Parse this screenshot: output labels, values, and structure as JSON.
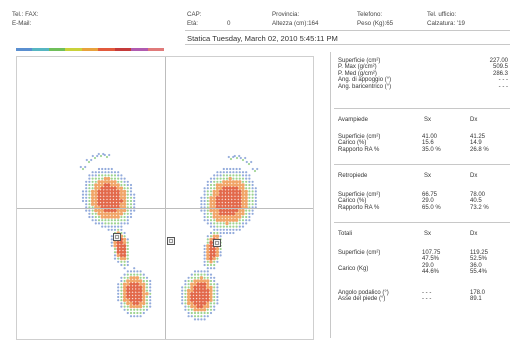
{
  "header": {
    "tel_fax": "Tel.: FAX:",
    "email": "E-Mail:",
    "cap": "CAP:",
    "eta_label": "Età:",
    "eta_value": "0",
    "provincia": "Provincia:",
    "altezza": "Altezza (cm):164",
    "telefono": "Telefono:",
    "peso": "Peso (Kg):65",
    "tel_ufficio": "Tel. ufficio:",
    "calzatura": "Calzatura: '19"
  },
  "title": "Statica Tuesday, March 02, 2010 5:45:11 PM",
  "colors": {
    "stripe": [
      "#5a8fd0",
      "#56b6c2",
      "#6fbf5a",
      "#c9d23a",
      "#e8a23c",
      "#e25a3c",
      "#c43a3a",
      "#b05ab0",
      "#e07a7a"
    ],
    "blue": "#6f8fcf",
    "green": "#7cc46a",
    "orange": "#f0a060",
    "red": "#e06040"
  },
  "summary": {
    "labels": [
      "Superficie (cm²)",
      "P. Max (g/cm²)",
      "P. Med (g/cm²)",
      "Ang. di appoggio (°)",
      "Ang. baricentrico (°)"
    ],
    "values": [
      "227.00",
      "509.5",
      "286.3",
      "- - -",
      "- - -"
    ]
  },
  "avampiede": {
    "title": "Avampiede",
    "sx": "Sx",
    "dx": "Dx",
    "labels": [
      "Superficie (cm²)",
      "Carico (%)",
      "Rapporto RA %"
    ],
    "sx_values": [
      "41.00",
      "15.6",
      "35.0 %"
    ],
    "dx_values": [
      "41.25",
      "14.9",
      "26.8 %"
    ]
  },
  "retropiede": {
    "title": "Retropiede",
    "sx": "Sx",
    "dx": "Dx",
    "labels": [
      "Superficie (cm²)",
      "Carico (%)",
      "Rapporto RA %"
    ],
    "sx_values": [
      "66.75",
      "29.0",
      "65.0 %"
    ],
    "dx_values": [
      "78.00",
      "40.5",
      "73.2 %"
    ]
  },
  "totali": {
    "title": "Totali",
    "sx": "Sx",
    "dx": "Dx",
    "superficie_label": "Superficie (cm²)",
    "superficie_sx": "107.75",
    "superficie_dx": "119.25",
    "pct_sx": "47.5%",
    "pct_dx": "52.5%",
    "carico_label": "Carico (Kg)",
    "carico_sx": "29.0",
    "carico_dx": "36.0",
    "carico_pct_sx": "44.6%",
    "carico_pct_dx": "55.4%",
    "angolo_label": "Angolo podalico (°)",
    "angolo_sx": "- - -",
    "angolo_dx": "178.0",
    "asse_label": "Asse del piede (°)",
    "asse_sx": "- - -",
    "asse_dx": "89.1"
  }
}
